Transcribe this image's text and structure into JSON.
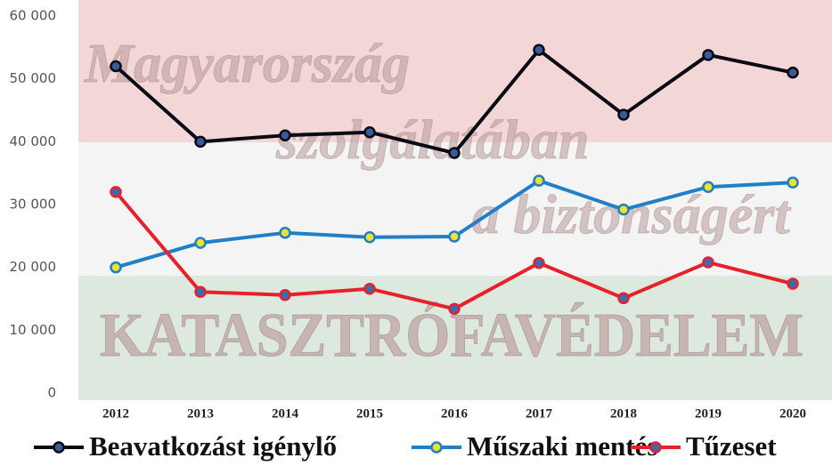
{
  "chart_data": {
    "type": "line",
    "categories": [
      "2012",
      "2013",
      "2014",
      "2015",
      "2016",
      "2017",
      "2018",
      "2019",
      "2020"
    ],
    "series": [
      {
        "name": "Beavatkozást igénylő",
        "color": "#0a0a14",
        "marker_color": "#3a5a9a",
        "values": [
          52000,
          40000,
          41000,
          41500,
          38200,
          54600,
          44300,
          53800,
          51000
        ]
      },
      {
        "name": "Műszaki mentés",
        "color": "#1f7fc8",
        "marker_color": "#f0e030",
        "values": [
          20000,
          23900,
          25500,
          24800,
          24900,
          33800,
          29200,
          32800,
          33500
        ]
      },
      {
        "name": "Tűzeset",
        "color": "#e8202a",
        "marker_color": "#3a6ab0",
        "values": [
          32000,
          16100,
          15600,
          16600,
          13400,
          20700,
          15100,
          20800,
          17400
        ]
      }
    ],
    "ylim": [
      0,
      60000
    ],
    "yticks": [
      0,
      {
        "value": 10000,
        "label": "10 000"
      },
      {
        "value": 20000,
        "label": "20 000"
      },
      {
        "value": 30000,
        "label": "30 000"
      },
      {
        "value": 40000,
        "label": "40 000"
      },
      {
        "value": 50000,
        "label": "50 000"
      },
      {
        "value": 60000,
        "label": "60 000"
      }
    ],
    "annotations": [
      "Magyarország",
      "szolgálatában",
      "a biztonságért",
      "KATASZTRÓFAVÉDELEM"
    ],
    "legend": "bottom"
  }
}
